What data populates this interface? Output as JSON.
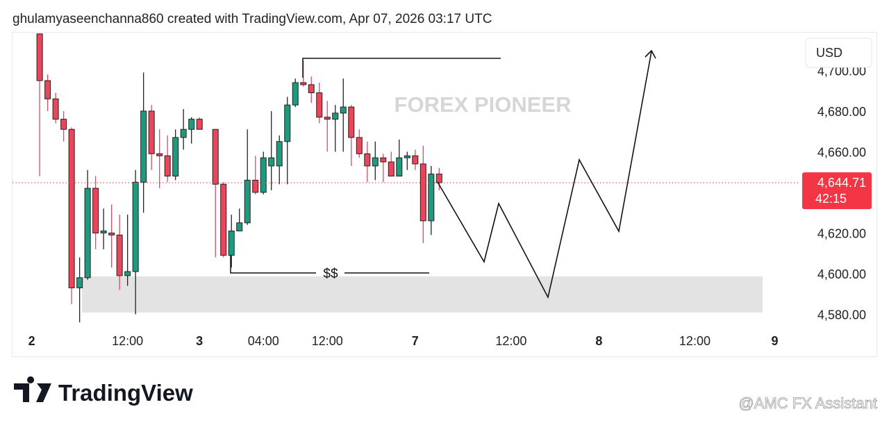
{
  "header": "ghulamyaseenchanna860 created with TradingView.com, Apr 07, 2026 03:17 UTC",
  "brand": "TradingView",
  "watermark": "@AMC FX Assistant",
  "chart_data": {
    "type": "candlestick",
    "text_watermark": "FOREX PIONEER",
    "annotation": "$$",
    "currency": "USD",
    "last_price": {
      "value": 4644.71,
      "label": "4,644.71"
    },
    "countdown": "42:15",
    "up_color": "#1f9a7e",
    "down_color": "#e8465a",
    "x": [
      0,
      1,
      2,
      3,
      4,
      5,
      6,
      7,
      8,
      9,
      10,
      11,
      12,
      13,
      14,
      15,
      16,
      17,
      18,
      19,
      20,
      22,
      23,
      24,
      25,
      26,
      27,
      28,
      29,
      30,
      31,
      32,
      33,
      34,
      35,
      36,
      37,
      38,
      39,
      40,
      41,
      42,
      43,
      44,
      45,
      46,
      47,
      48,
      49,
      50
    ],
    "open": [
      4718,
      4695,
      4686,
      4676,
      4671,
      4593,
      4598,
      4642,
      4620,
      4620,
      4619,
      4599,
      4601,
      4645,
      4680,
      4659,
      4658,
      4648,
      4667,
      4671,
      4676,
      4671,
      4644,
      4609,
      4621,
      4625,
      4646,
      4640,
      4653,
      4653,
      4665,
      4683,
      4694,
      4693,
      4689,
      4677,
      4676,
      4679,
      4682,
      4667,
      4659,
      4653,
      4657,
      4655,
      4648,
      4657,
      4658,
      4654,
      4626,
      4649
    ],
    "high": [
      4718,
      4698,
      4689,
      4680,
      4672,
      4608,
      4651,
      4648,
      4632,
      4634,
      4629,
      4629,
      4651,
      4699,
      4683,
      4671,
      4668,
      4671,
      4681,
      4677,
      4677,
      4671,
      4645,
      4629,
      4632,
      4671,
      4658,
      4660,
      4680,
      4668,
      4687,
      4696,
      4705,
      4697,
      4694,
      4685,
      4683,
      4696,
      4683,
      4671,
      4665,
      4665,
      4659,
      4660,
      4666,
      4660,
      4661,
      4663,
      4653,
      4652
    ],
    "low": [
      4648,
      4680,
      4674,
      4665,
      4585,
      4576,
      4597,
      4612,
      4612,
      4603,
      4592,
      4594,
      4580,
      4630,
      4651,
      4642,
      4645,
      4646,
      4661,
      4664,
      4671,
      4608,
      4608,
      4603,
      4621,
      4624,
      4639,
      4639,
      4641,
      4644,
      4644,
      4682,
      4692,
      4684,
      4674,
      4660,
      4660,
      4660,
      4653,
      4657,
      4645,
      4646,
      4645,
      4648,
      4648,
      4651,
      4651,
      4615,
      4619,
      4641
    ],
    "close": [
      4695,
      4686,
      4676,
      4671,
      4593,
      4598,
      4642,
      4620,
      4621,
      4619,
      4599,
      4601,
      4645,
      4680,
      4659,
      4658,
      4648,
      4667,
      4671,
      4676,
      4671,
      4644,
      4609,
      4621,
      4625,
      4646,
      4640,
      4657,
      4657,
      4665,
      4683,
      4694,
      4693,
      4689,
      4677,
      4676,
      4679,
      4682,
      4667,
      4659,
      4653,
      4657,
      4655,
      4648,
      4657,
      4658,
      4654,
      4626,
      4649,
      4644.71
    ],
    "xlim": [
      -3.4,
      95
    ],
    "xticks": [
      {
        "value": -1,
        "label": "2"
      },
      {
        "value": 11,
        "label": "12:00"
      },
      {
        "value": 20,
        "label": "3"
      },
      {
        "value": 28,
        "label": "04:00"
      },
      {
        "value": 36,
        "label": "12:00"
      },
      {
        "value": 47,
        "label": "7"
      },
      {
        "value": 59,
        "label": "12:00"
      },
      {
        "value": 70,
        "label": "8"
      },
      {
        "value": 82,
        "label": "12:00"
      },
      {
        "value": 92,
        "label": "9"
      }
    ],
    "ylim": [
      4572.3,
      4718.6
    ],
    "yticks": [
      {
        "value": 4580,
        "label": "4,580.00"
      },
      {
        "value": 4600,
        "label": "4,600.00"
      },
      {
        "value": 4620,
        "label": "4,620.00"
      },
      {
        "value": 4660,
        "label": "4,660.00"
      },
      {
        "value": 4680,
        "label": "4,680.00"
      },
      {
        "value": 4700,
        "label": "4,700.00"
      }
    ]
  }
}
